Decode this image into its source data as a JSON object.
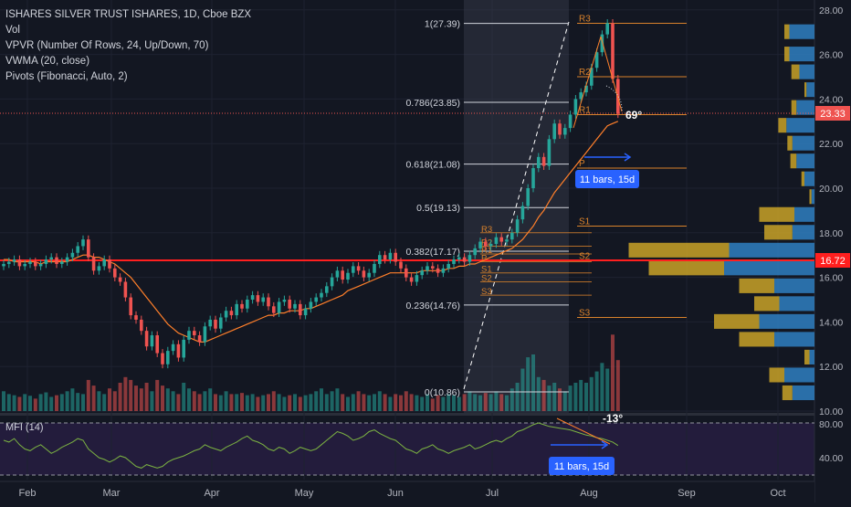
{
  "legend": {
    "symbol": "ISHARES SILVER TRUST ISHARES, 1D, Cboe BZX",
    "vol": "Vol",
    "vpvr": "VPVR (Number Of Rows, 24, Up/Down, 70)",
    "vwma": "VWMA (20, close)",
    "pivots": "Pivots (Fibonacci, Auto, 2)"
  },
  "mfi": {
    "label": "MFI (14)",
    "axis": [
      "80.00",
      "40.00"
    ]
  },
  "colors": {
    "bg": "#131722",
    "up": "#26a69a",
    "down": "#ef5350",
    "vwma": "#ff7f2a",
    "pivot": "#d9822b",
    "fib": "#d1d4dc",
    "callout": "#2962ff",
    "vpvr_up": "#2f7fc1",
    "vpvr_down": "#c9a227",
    "hline": "#ff1f1f",
    "mfi_line": "#7cb342"
  },
  "price_axis": {
    "ticks": [
      "28.00",
      "26.00",
      "24.00",
      "22.00",
      "20.00",
      "18.00",
      "16.00",
      "14.00",
      "12.00",
      "10.00"
    ],
    "current_price": "23.33",
    "hline_price": "16.72"
  },
  "time_axis": [
    "Feb",
    "Mar",
    "Apr",
    "May",
    "Jun",
    "Jul",
    "Aug",
    "Sep",
    "Oct"
  ],
  "fib_levels": [
    {
      "label": "1(27.39)",
      "value": 27.39
    },
    {
      "label": "0.786(23.85)",
      "value": 23.85
    },
    {
      "label": "0.618(21.08)",
      "value": 21.08
    },
    {
      "label": "0.5(19.13)",
      "value": 19.13
    },
    {
      "label": "0.382(17.17)",
      "value": 17.17
    },
    {
      "label": "0.236(14.76)",
      "value": 14.76
    },
    {
      "label": "0(10.86)",
      "value": 10.86
    }
  ],
  "pivots_recent": [
    {
      "label": "R3",
      "value": 27.4
    },
    {
      "label": "R2",
      "value": 25.0
    },
    {
      "label": "R1",
      "value": 23.3
    },
    {
      "label": "P",
      "value": 20.9
    },
    {
      "label": "S1",
      "value": 18.3
    },
    {
      "label": "S2",
      "value": 16.75
    },
    {
      "label": "S3",
      "value": 14.2
    }
  ],
  "pivots_old": [
    {
      "label": "R3",
      "value": 18.0
    },
    {
      "label": "R2",
      "value": 17.4
    },
    {
      "label": "R1",
      "value": 17.05
    },
    {
      "label": "P",
      "value": 16.7
    },
    {
      "label": "S1",
      "value": 16.2
    },
    {
      "label": "S2",
      "value": 15.8
    },
    {
      "label": "S3",
      "value": 15.2
    }
  ],
  "annotations": {
    "angle_top": "69°",
    "angle_mfi": "-13°",
    "bars_top": "11 bars, 15d",
    "bars_mfi": "11 bars, 15d"
  },
  "chart_data": {
    "type": "candlestick",
    "y_range": [
      10,
      28
    ],
    "closes": [
      16.6,
      16.7,
      16.8,
      16.5,
      16.6,
      16.7,
      16.5,
      16.6,
      16.8,
      16.9,
      16.6,
      16.7,
      16.9,
      17.1,
      17.4,
      17.7,
      16.9,
      16.3,
      16.5,
      16.8,
      16.4,
      16.0,
      15.8,
      15.1,
      14.3,
      14.1,
      13.6,
      12.9,
      13.4,
      12.6,
      12.1,
      12.7,
      13.0,
      12.4,
      13.2,
      13.6,
      13.4,
      13.1,
      13.8,
      14.1,
      13.7,
      14.2,
      14.5,
      14.3,
      14.8,
      14.6,
      15.0,
      15.2,
      14.9,
      15.1,
      14.7,
      14.4,
      14.9,
      15.0,
      14.6,
      14.8,
      14.3,
      14.6,
      14.9,
      15.1,
      15.3,
      15.6,
      16.0,
      16.3,
      15.9,
      16.2,
      16.5,
      16.3,
      16.0,
      16.2,
      16.6,
      17.0,
      16.8,
      17.1,
      16.7,
      16.4,
      16.0,
      15.8,
      16.1,
      16.3,
      16.5,
      16.4,
      16.2,
      16.4,
      16.6,
      16.8,
      16.9,
      16.7,
      17.0,
      17.3,
      17.6,
      17.4,
      17.5,
      17.8,
      17.6,
      17.7,
      18.0,
      18.6,
      19.2,
      20.0,
      20.9,
      21.4,
      21.0,
      22.2,
      22.9,
      22.4,
      22.7,
      23.3,
      24.0,
      24.3,
      24.6,
      25.4,
      26.1,
      26.9,
      27.4,
      24.9,
      23.33
    ],
    "vwma": [
      16.8,
      16.8,
      16.7,
      16.7,
      16.7,
      16.7,
      16.7,
      16.6,
      16.7,
      16.7,
      16.7,
      16.7,
      16.7,
      16.8,
      16.9,
      17.0,
      17.0,
      16.9,
      16.9,
      16.8,
      16.7,
      16.6,
      16.4,
      16.2,
      16.0,
      15.7,
      15.4,
      15.1,
      14.8,
      14.5,
      14.2,
      13.9,
      13.7,
      13.5,
      13.4,
      13.3,
      13.2,
      13.1,
      13.1,
      13.2,
      13.3,
      13.4,
      13.5,
      13.6,
      13.7,
      13.8,
      13.9,
      14.0,
      14.1,
      14.2,
      14.3,
      14.3,
      14.4,
      14.4,
      14.5,
      14.5,
      14.5,
      14.6,
      14.6,
      14.7,
      14.8,
      14.9,
      15.0,
      15.1,
      15.2,
      15.4,
      15.5,
      15.6,
      15.7,
      15.8,
      15.9,
      16.0,
      16.1,
      16.2,
      16.2,
      16.2,
      16.2,
      16.2,
      16.2,
      16.3,
      16.3,
      16.3,
      16.3,
      16.3,
      16.4,
      16.4,
      16.5,
      16.5,
      16.6,
      16.6,
      16.7,
      16.8,
      16.9,
      17.0,
      17.1,
      17.2,
      17.3,
      17.5,
      17.7,
      18.0,
      18.3,
      18.7,
      19.0,
      19.4,
      19.8,
      20.1,
      20.4,
      20.7,
      21.0,
      21.3,
      21.6,
      21.9,
      22.2,
      22.5,
      22.8,
      22.9,
      23.0
    ],
    "volume": [
      0.35,
      0.3,
      0.28,
      0.25,
      0.3,
      0.27,
      0.22,
      0.3,
      0.33,
      0.25,
      0.28,
      0.3,
      0.35,
      0.4,
      0.32,
      0.3,
      0.55,
      0.45,
      0.35,
      0.3,
      0.4,
      0.35,
      0.5,
      0.6,
      0.55,
      0.45,
      0.4,
      0.5,
      0.35,
      0.55,
      0.45,
      0.4,
      0.35,
      0.3,
      0.5,
      0.4,
      0.35,
      0.3,
      0.35,
      0.4,
      0.3,
      0.28,
      0.35,
      0.3,
      0.3,
      0.32,
      0.28,
      0.3,
      0.25,
      0.28,
      0.3,
      0.35,
      0.3,
      0.25,
      0.28,
      0.3,
      0.25,
      0.28,
      0.3,
      0.35,
      0.4,
      0.3,
      0.35,
      0.4,
      0.3,
      0.25,
      0.3,
      0.35,
      0.3,
      0.28,
      0.3,
      0.35,
      0.3,
      0.25,
      0.3,
      0.28,
      0.35,
      0.3,
      0.28,
      0.25,
      0.3,
      0.22,
      0.28,
      0.25,
      0.3,
      0.28,
      0.25,
      0.3,
      0.35,
      0.3,
      0.28,
      0.32,
      0.3,
      0.35,
      0.3,
      0.28,
      0.4,
      0.5,
      0.75,
      0.95,
      1.0,
      0.6,
      0.55,
      0.45,
      0.5,
      0.4,
      0.35,
      0.45,
      0.5,
      0.55,
      0.5,
      0.6,
      0.7,
      0.85,
      0.75,
      1.35,
      0.9
    ],
    "mfi": [
      60,
      58,
      62,
      55,
      50,
      48,
      52,
      55,
      50,
      45,
      48,
      52,
      55,
      58,
      62,
      60,
      50,
      45,
      40,
      38,
      35,
      38,
      42,
      40,
      35,
      30,
      28,
      32,
      30,
      28,
      30,
      35,
      38,
      40,
      42,
      45,
      48,
      50,
      55,
      52,
      50,
      48,
      52,
      55,
      58,
      62,
      65,
      60,
      58,
      55,
      50,
      48,
      52,
      50,
      45,
      48,
      52,
      50,
      48,
      50,
      55,
      60,
      65,
      70,
      68,
      65,
      60,
      62,
      65,
      70,
      72,
      68,
      65,
      62,
      60,
      55,
      50,
      48,
      45,
      50,
      52,
      55,
      50,
      48,
      45,
      48,
      50,
      52,
      55,
      50,
      52,
      55,
      58,
      60,
      58,
      62,
      65,
      70,
      72,
      75,
      78,
      80,
      78,
      76,
      75,
      74,
      73,
      72,
      70,
      68,
      66,
      65,
      63,
      62,
      60,
      58,
      54
    ]
  }
}
